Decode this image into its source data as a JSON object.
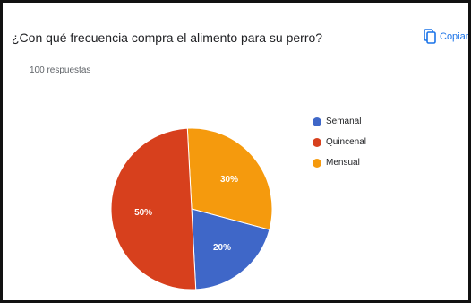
{
  "title": "¿Con qué frecuencia compra el alimento para su perro?",
  "response_count": "100 respuestas",
  "copy_label": "Copiar",
  "chart_data": {
    "type": "pie",
    "slices": [
      {
        "name": "Semanal",
        "value": 20,
        "label": "20%",
        "color": "#3f67c8"
      },
      {
        "name": "Quincenal",
        "value": 50,
        "label": "50%",
        "color": "#d7401d"
      },
      {
        "name": "Mensual",
        "value": 30,
        "label": "30%",
        "color": "#f59a0d"
      }
    ],
    "legend": "right"
  }
}
